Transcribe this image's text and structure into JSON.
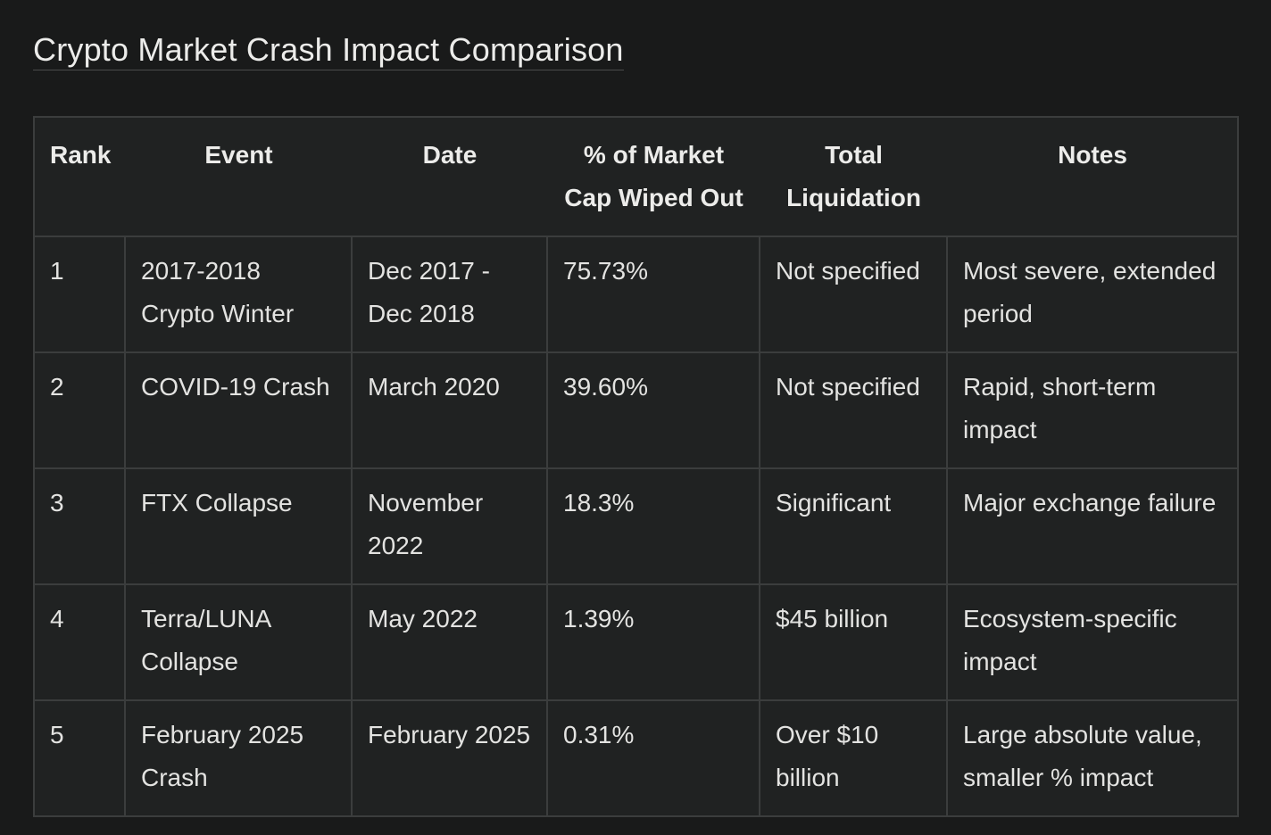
{
  "title": "Crypto Market Crash Impact Comparison",
  "table": {
    "headers": [
      "Rank",
      "Event",
      "Date",
      "% of Market Cap Wiped Out",
      "Total Liquidation",
      "Notes"
    ],
    "rows": [
      [
        "1",
        "2017-2018 Crypto Winter",
        "Dec 2017 - Dec 2018",
        "75.73%",
        "Not specified",
        "Most severe, extended period"
      ],
      [
        "2",
        "COVID-19 Crash",
        "March 2020",
        "39.60%",
        "Not specified",
        "Rapid, short-term impact"
      ],
      [
        "3",
        "FTX Collapse",
        "November 2022",
        "18.3%",
        "Significant",
        "Major exchange failure"
      ],
      [
        "4",
        "Terra/LUNA Collapse",
        "May 2022",
        "1.39%",
        "$45 billion",
        "Ecosystem-specific impact"
      ],
      [
        "5",
        "February 2025 Crash",
        "February 2025",
        "0.31%",
        "Over $10 billion",
        "Large absolute value, smaller % impact"
      ]
    ]
  }
}
